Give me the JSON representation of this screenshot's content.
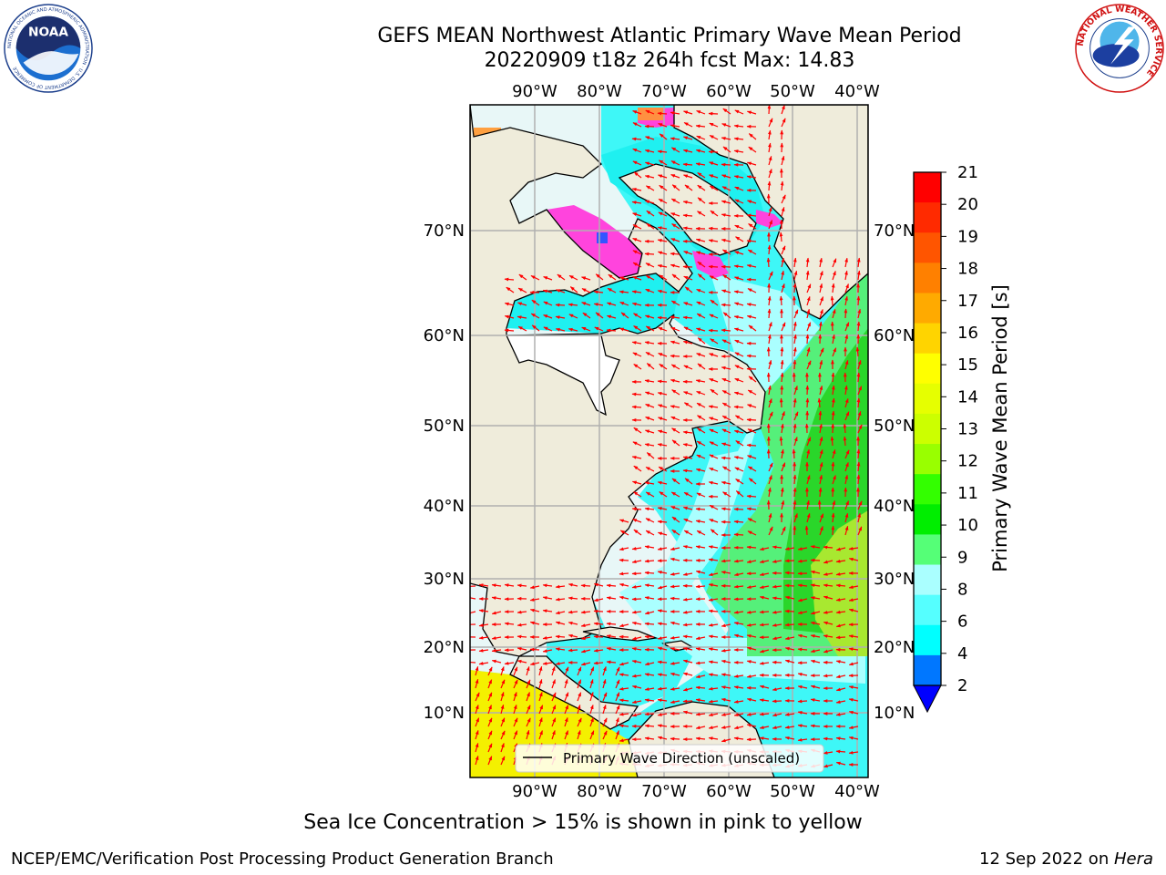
{
  "header": {
    "title_line1": "GEFS MEAN Northwest Atlantic Primary Wave Mean Period",
    "title_line2": "20220909 t18z 264h fcst   Max: 14.83"
  },
  "logos": {
    "noaa_text": "NOAA",
    "noaa_ring_text": "NATIONAL OCEANIC AND ATMOSPHERIC ADMINISTRATION · U.S. DEPARTMENT OF COMMERCE",
    "nws_ring_text": "NATIONAL WEATHER SERVICE"
  },
  "map": {
    "lon_labels": [
      "90°W",
      "80°W",
      "70°W",
      "60°W",
      "50°W",
      "40°W"
    ],
    "lat_labels": [
      "70°N",
      "60°N",
      "50°N",
      "40°N",
      "30°N",
      "20°N",
      "10°N"
    ],
    "legend_label": "Primary Wave Direction (unscaled)",
    "colors": {
      "land": "#efecdb",
      "arrow": "#ff0000",
      "grid": "#b0b0b0"
    }
  },
  "colorbar": {
    "title": "Primary Wave Mean Period [s]",
    "tick_labels": [
      "21",
      "20",
      "19",
      "18",
      "17",
      "16",
      "15",
      "14",
      "13",
      "12",
      "11",
      "10",
      "9",
      "8",
      "6",
      "4",
      "2"
    ],
    "colors": [
      "#ff0000",
      "#ff2a00",
      "#ff5500",
      "#ff8000",
      "#ffaa00",
      "#ffd400",
      "#ffff00",
      "#e6ff00",
      "#ccff00",
      "#99ff00",
      "#33ff00",
      "#00ee00",
      "#55ff77",
      "#aaffff",
      "#55ffff",
      "#00ffff",
      "#0077ff"
    ],
    "under_color": "#0000ff"
  },
  "footer": {
    "note": "Sea Ice Concentration > 15% is shown in pink to yellow",
    "left": "NCEP/EMC/Verification Post Processing Product Generation Branch",
    "right_date": "12 Sep 2022 on ",
    "right_machine": "Hera"
  }
}
